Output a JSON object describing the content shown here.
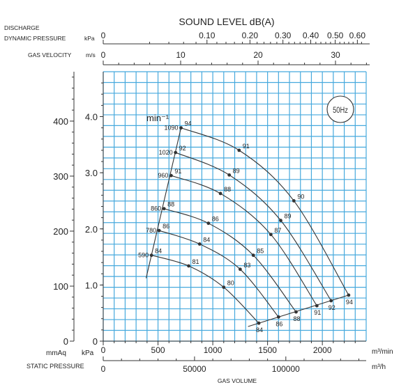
{
  "chart_data": {
    "type": "line",
    "title": "SOUND LEVEL dB(A)",
    "frequency_badge": "50Hz",
    "speed_unit_label": "min⁻¹",
    "top_axes": [
      {
        "label_line1": "DISCHARGE",
        "label_line2": "DYNAMIC PRESSURE",
        "unit": "kPa",
        "ticks": [
          "0",
          "0.10",
          "0.20",
          "0.30",
          "0.40",
          "0.50",
          "0.60"
        ],
        "tick_values": [
          0,
          0.1,
          0.2,
          0.3,
          0.4,
          0.5,
          0.6
        ]
      },
      {
        "label": "GAS VELOCITY",
        "unit": "m/s",
        "ticks": [
          "0",
          "10",
          "20",
          "30"
        ],
        "tick_values": [
          0,
          10,
          20,
          30
        ]
      }
    ],
    "x_axes": [
      {
        "unit": "m³/min",
        "ticks": [
          "0",
          "500",
          "1000",
          "1500",
          "2000"
        ],
        "xlim": [
          0,
          2400
        ]
      },
      {
        "unit": "m³/h",
        "ticks": [
          "0",
          "50000",
          "100000"
        ]
      }
    ],
    "xlabel": "GAS VOLUME",
    "ylabel": "STATIC PRESSURE",
    "y_axes": [
      {
        "unit": "mmAq",
        "ticks": [
          "0",
          "100",
          "200",
          "300",
          "400"
        ]
      },
      {
        "unit": "kPa",
        "ticks": [
          "0",
          "1.0",
          "2.0",
          "3.0",
          "4.0"
        ],
        "ylim": [
          0,
          4.8
        ]
      }
    ],
    "series": [
      {
        "name": "1090",
        "points": [
          [
            710,
            3.8
          ],
          [
            1240,
            3.4
          ],
          [
            1740,
            2.5
          ],
          [
            2240,
            0.82
          ]
        ],
        "db": [
          "94",
          "91",
          "90",
          "94"
        ]
      },
      {
        "name": "1020",
        "points": [
          [
            660,
            3.36
          ],
          [
            1150,
            2.96
          ],
          [
            1620,
            2.15
          ],
          [
            2080,
            0.72
          ]
        ],
        "db": [
          "92",
          "89",
          "89",
          "92"
        ]
      },
      {
        "name": "960",
        "points": [
          [
            620,
            2.95
          ],
          [
            1070,
            2.63
          ],
          [
            1530,
            1.9
          ],
          [
            1950,
            0.63
          ]
        ],
        "db": [
          "91",
          "88",
          "87",
          "91"
        ]
      },
      {
        "name": "860",
        "points": [
          [
            555,
            2.36
          ],
          [
            960,
            2.1
          ],
          [
            1370,
            1.53
          ],
          [
            1760,
            0.52
          ]
        ],
        "db": [
          "88",
          "86",
          "85",
          "88"
        ]
      },
      {
        "name": "780",
        "points": [
          [
            510,
            1.97
          ],
          [
            880,
            1.73
          ],
          [
            1250,
            1.28
          ],
          [
            1600,
            0.43
          ]
        ],
        "db": [
          "86",
          "84",
          "83",
          "86"
        ]
      },
      {
        "name": "590",
        "points": [
          [
            440,
            1.53
          ],
          [
            780,
            1.34
          ],
          [
            1100,
            0.96
          ],
          [
            1420,
            0.32
          ]
        ],
        "db": [
          "84",
          "81",
          "80",
          "84"
        ]
      }
    ]
  }
}
